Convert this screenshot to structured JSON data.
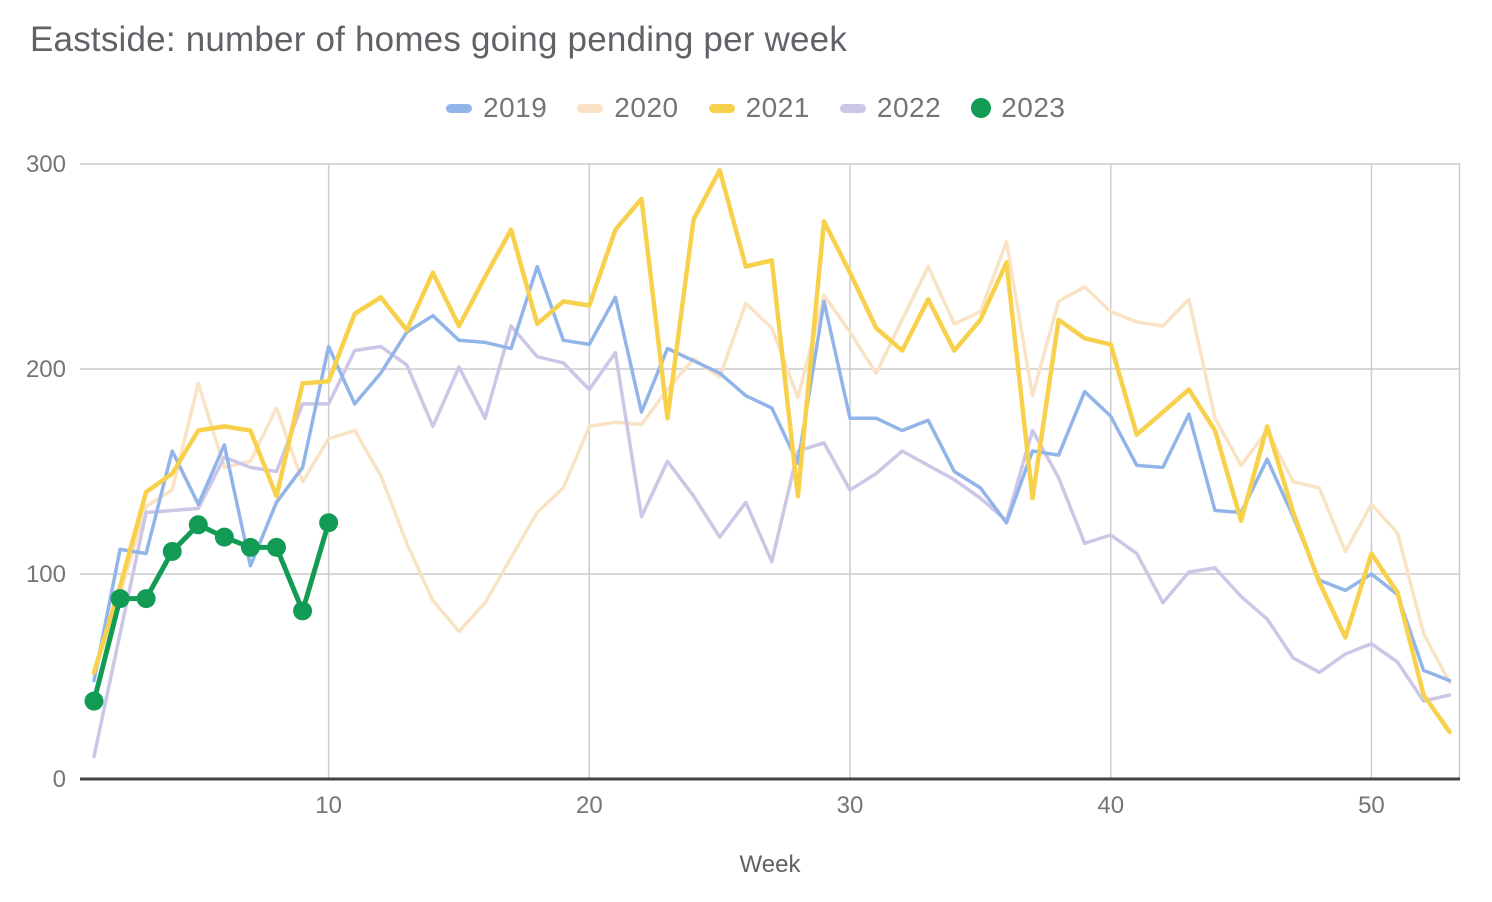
{
  "title": "Eastside: number of homes going pending per week",
  "chart_data": {
    "type": "line",
    "title": "Eastside: number of homes going pending per week",
    "xlabel": "Week",
    "ylabel": "",
    "xlim": [
      1,
      53
    ],
    "ylim": [
      0,
      300
    ],
    "x_ticks": [
      10,
      20,
      30,
      40,
      50
    ],
    "y_ticks": [
      0,
      100,
      200,
      300
    ],
    "grid": true,
    "legend_position": "top",
    "x": [
      1,
      2,
      3,
      4,
      5,
      6,
      7,
      8,
      9,
      10,
      11,
      12,
      13,
      14,
      15,
      16,
      17,
      18,
      19,
      20,
      21,
      22,
      23,
      24,
      25,
      26,
      27,
      28,
      29,
      30,
      31,
      32,
      33,
      34,
      35,
      36,
      37,
      38,
      39,
      40,
      41,
      42,
      43,
      44,
      45,
      46,
      47,
      48,
      49,
      50,
      51,
      52,
      53
    ],
    "series": [
      {
        "name": "2019",
        "color": "#92b5e9",
        "style": "line",
        "marker": "square",
        "values": [
          48,
          112,
          110,
          160,
          134,
          163,
          104,
          135,
          152,
          211,
          183,
          198,
          218,
          226,
          214,
          213,
          210,
          250,
          214,
          212,
          235,
          179,
          210,
          204,
          198,
          187,
          181,
          154,
          233,
          176,
          176,
          170,
          175,
          150,
          142,
          125,
          160,
          158,
          189,
          177,
          153,
          152,
          178,
          131,
          130,
          156,
          128,
          97,
          92,
          100,
          90,
          53,
          48
        ]
      },
      {
        "name": "2020",
        "color": "#fae3c5",
        "style": "line",
        "marker": "square",
        "values": [
          51,
          90,
          133,
          141,
          193,
          152,
          155,
          181,
          145,
          166,
          170,
          148,
          115,
          87,
          72,
          86,
          108,
          130,
          142,
          172,
          174,
          173,
          190,
          205,
          196,
          232,
          220,
          186,
          236,
          218,
          198,
          224,
          250,
          222,
          228,
          262,
          187,
          233,
          240,
          228,
          223,
          221,
          234,
          176,
          153,
          170,
          145,
          142,
          111,
          134,
          120,
          71,
          47
        ]
      },
      {
        "name": "2021",
        "color": "#f8d14c",
        "style": "line",
        "marker": "square",
        "values": [
          52,
          94,
          140,
          149,
          170,
          172,
          170,
          138,
          193,
          194,
          227,
          235,
          219,
          247,
          221,
          245,
          268,
          222,
          233,
          231,
          268,
          283,
          176,
          273,
          297,
          250,
          253,
          138,
          272,
          247,
          220,
          209,
          234,
          209,
          224,
          252,
          137,
          224,
          215,
          212,
          168,
          179,
          190,
          170,
          126,
          172,
          130,
          96,
          69,
          110,
          91,
          41,
          23
        ]
      },
      {
        "name": "2022",
        "color": "#cdc6e6",
        "style": "line",
        "marker": "square",
        "values": [
          11,
          71,
          130,
          131,
          132,
          157,
          152,
          150,
          183,
          183,
          209,
          211,
          202,
          172,
          201,
          176,
          221,
          206,
          203,
          190,
          208,
          128,
          155,
          138,
          118,
          135,
          106,
          160,
          164,
          141,
          149,
          160,
          153,
          146,
          137,
          126,
          170,
          147,
          115,
          119,
          110,
          86,
          101,
          103,
          89,
          78,
          59,
          52,
          61,
          66,
          57,
          38,
          41
        ]
      },
      {
        "name": "2023",
        "color": "#129b55",
        "style": "line+points",
        "marker": "circle",
        "values": [
          38,
          88,
          88,
          111,
          124,
          118,
          113,
          113,
          82,
          125
        ]
      }
    ]
  },
  "colors": {
    "title_text": "#5f6368",
    "axis_text": "#757575",
    "xlabel_text": "#616161",
    "gridline": "#cccccc",
    "axis_line": "#424242",
    "background": "#ffffff"
  }
}
